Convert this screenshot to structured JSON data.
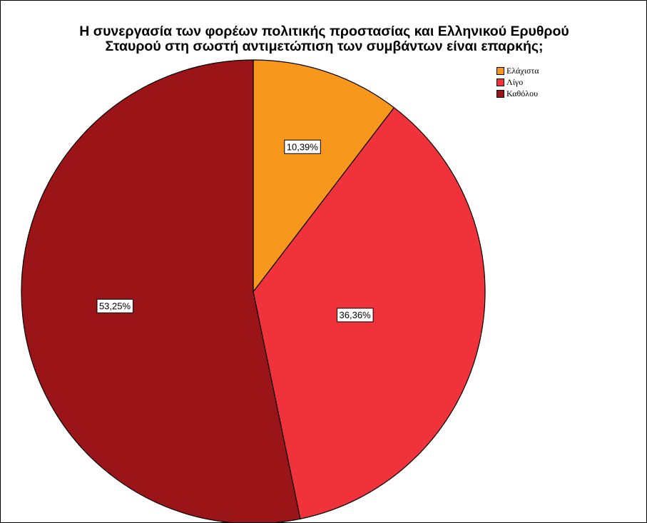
{
  "chart_data": {
    "type": "pie",
    "title": "Η συνεργασία των φορέων πολιτικής προστασίας και Ελληνικού Ερυθρού Σταυρού στη σωστή αντιμετώπιση των συμβάντων είναι επαρκής;",
    "title_lines": [
      "Η συνεργασία των φορέων πολιτικής προστασίας και Ελληνικού Ερυθρού",
      "Σταυρού στη σωστή αντιμετώπιση των συμβάντων είναι επαρκής;"
    ],
    "categories": [
      "Ελάχιστα",
      "Λίγο",
      "Καθόλου"
    ],
    "values": [
      10.39,
      36.36,
      53.25
    ],
    "labels": [
      "10,39%",
      "36,36%",
      "53,25%"
    ],
    "colors": [
      "#f7981d",
      "#f0333a",
      "#9b1518"
    ],
    "legend_position": "top-right",
    "start_angle": "12 o'clock",
    "direction": "clockwise"
  }
}
